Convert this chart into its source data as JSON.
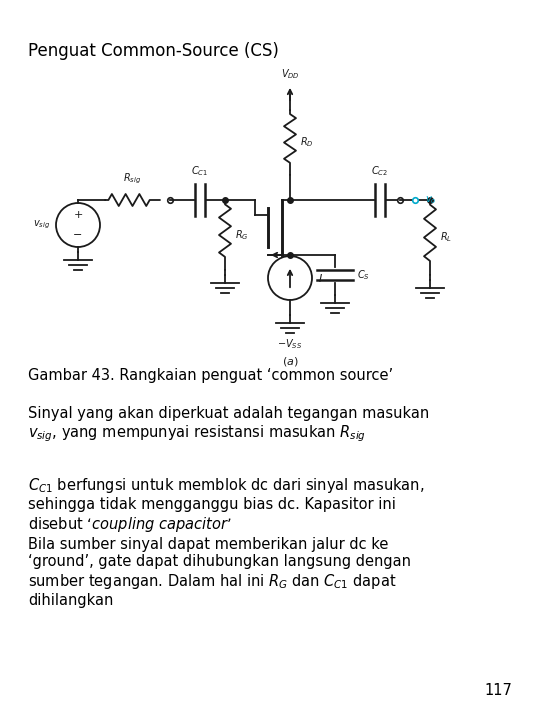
{
  "title": "Penguat Common-Source (CS)",
  "title_fontsize": 12,
  "fig_caption": "Gambar 43. Rangkaian penguat ‘common source’",
  "caption_fontsize": 10.5,
  "page_number": "117",
  "background_color": "#ffffff",
  "circuit_color": "#1a1a1a",
  "vo_color": "#00aacc",
  "body1": "Sinyal yang akan diperkuat adalah tegangan masukan\n$v_{sig}$, yang mempunyai resistansi masukan $R_{sig}$",
  "body2_l1": "$C_{C1}$ berfungsi untuk memblok dc dari sinyal masukan,",
  "body2_l2": "sehingga tidak mengganggu bias dc. Kapasitor ini",
  "body2_l3": "disebut ‘$\\mathit{coupling\\ capacitor}$’",
  "body2_l4": "Bila sumber sinyal dapat memberikan jalur dc ke",
  "body2_l5": "‘ground’, gate dapat dihubungkan langsung dengan",
  "body2_l6": "sumber tegangan. Dalam hal ini $R_G$ dan $C_{C1}$ dapat",
  "body2_l7": "dihilangkan"
}
